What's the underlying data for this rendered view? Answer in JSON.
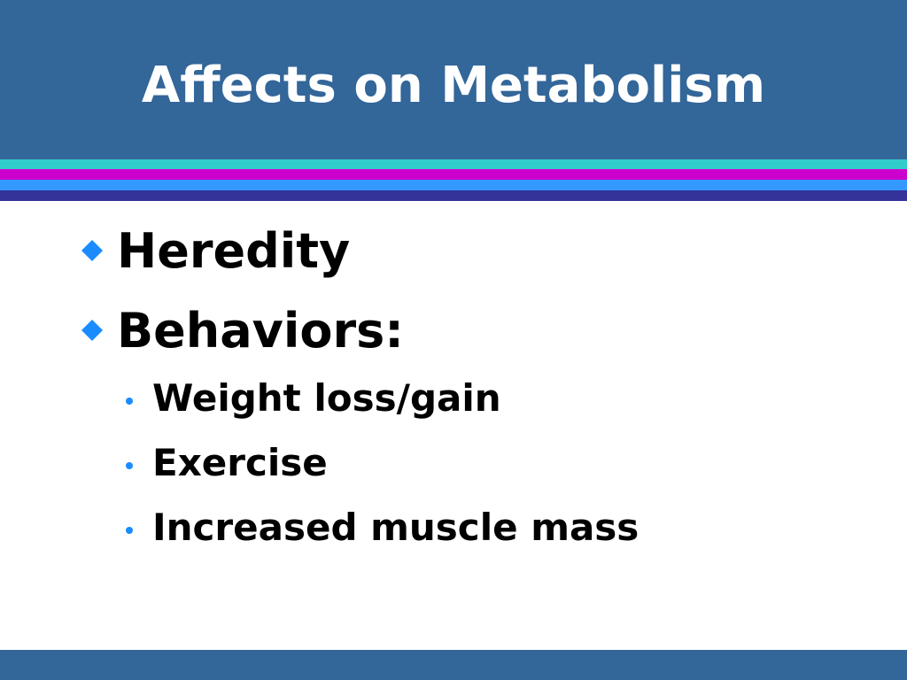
{
  "title": "Affects on Metabolism",
  "bullets": [
    {
      "text": "Heredity",
      "sub": []
    },
    {
      "text": "Behaviors:",
      "sub": [
        "Weight loss/gain",
        "Exercise",
        "Increased muscle mass"
      ]
    }
  ]
}
